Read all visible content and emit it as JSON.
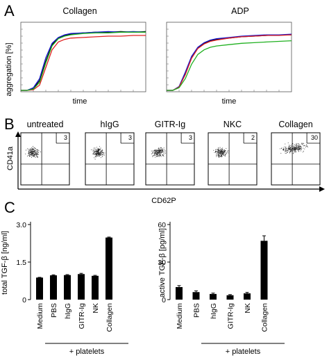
{
  "panels": {
    "a": "A",
    "b": "B",
    "c": "C"
  },
  "panel_a": {
    "ylabel": "aggregation [%]",
    "plots": [
      {
        "title": "Collagen",
        "xlabel": "time"
      },
      {
        "title": "ADP",
        "xlabel": "time"
      }
    ]
  },
  "panel_b": {
    "ylabel": "CD41a",
    "xlabel": "CD62P",
    "plots": [
      {
        "title": "untreated",
        "percent": "3"
      },
      {
        "title": "hIgG",
        "percent": "3"
      },
      {
        "title": "GITR-Ig",
        "percent": "3"
      },
      {
        "title": "NKC",
        "percent": "2"
      },
      {
        "title": "Collagen",
        "percent": "30"
      }
    ]
  },
  "panel_c": {
    "group_label": "+ platelets"
  },
  "colors": {
    "black": "#000000",
    "blue": "#1a1acc",
    "red": "#e02020",
    "green": "#1fb01f"
  },
  "chart_data": [
    {
      "type": "line",
      "title": "Collagen",
      "xlabel": "time",
      "ylabel": "aggregation [%]",
      "x": [
        0,
        0.05,
        0.1,
        0.15,
        0.2,
        0.25,
        0.3,
        0.35,
        0.4,
        0.5,
        0.6,
        0.7,
        0.8,
        0.9,
        1.0
      ],
      "series": [
        {
          "color": "#000000",
          "values": [
            0,
            0,
            3,
            15,
            45,
            70,
            80,
            84,
            86,
            88,
            89,
            89,
            90,
            89,
            90
          ]
        },
        {
          "color": "#1a1acc",
          "values": [
            0,
            0,
            4,
            18,
            50,
            72,
            81,
            85,
            87,
            88,
            89,
            90,
            89,
            90,
            89
          ]
        },
        {
          "color": "#e02020",
          "values": [
            0,
            0,
            1,
            8,
            35,
            62,
            74,
            78,
            80,
            81,
            82,
            83,
            83,
            84,
            84
          ]
        },
        {
          "color": "#1fb01f",
          "values": [
            0,
            0,
            2,
            12,
            42,
            68,
            79,
            83,
            85,
            87,
            88,
            88,
            89,
            89,
            89
          ]
        }
      ]
    },
    {
      "type": "line",
      "title": "ADP",
      "xlabel": "time",
      "ylabel": "aggregation [%]",
      "x": [
        0,
        0.05,
        0.1,
        0.15,
        0.2,
        0.25,
        0.3,
        0.35,
        0.4,
        0.5,
        0.6,
        0.7,
        0.8,
        0.9,
        1.0
      ],
      "series": [
        {
          "color": "#000000",
          "values": [
            0,
            0,
            5,
            25,
            50,
            65,
            72,
            76,
            78,
            80,
            82,
            83,
            84,
            85,
            85
          ]
        },
        {
          "color": "#1a1acc",
          "values": [
            0,
            0,
            6,
            28,
            52,
            66,
            73,
            77,
            79,
            81,
            83,
            84,
            85,
            85,
            86
          ]
        },
        {
          "color": "#e02020",
          "values": [
            0,
            0,
            5,
            24,
            49,
            64,
            71,
            75,
            77,
            80,
            82,
            83,
            84,
            84,
            85
          ]
        },
        {
          "color": "#1fb01f",
          "values": [
            0,
            0,
            4,
            18,
            40,
            55,
            62,
            66,
            68,
            70,
            72,
            73,
            74,
            75,
            76
          ]
        }
      ]
    },
    {
      "type": "bar",
      "ylabel": "total TGF-β [ng/ml]",
      "categories": [
        "Medium",
        "PBS",
        "hIgG",
        "GITR-Ig",
        "NK",
        "Collagen"
      ],
      "values": [
        0.88,
        0.97,
        0.98,
        1.02,
        0.95,
        2.48
      ],
      "errors": [
        0.01,
        0.02,
        0.02,
        0.03,
        0.02,
        0.02
      ],
      "yticks": [
        "0",
        "1.5",
        "3.0"
      ],
      "ylim": [
        0,
        3.0
      ],
      "xgroup": "+ platelets"
    },
    {
      "type": "bar",
      "ylabel": "active TGF-β [pg/ml]",
      "categories": [
        "Medium",
        "PBS",
        "hIgG",
        "GITR-Ig",
        "NK",
        "Collagen"
      ],
      "values": [
        10,
        6,
        4.5,
        3.5,
        5,
        47
      ],
      "errors": [
        1.2,
        1.0,
        0.7,
        0.5,
        0.8,
        4
      ],
      "yticks": [
        "0",
        "30",
        "60"
      ],
      "ylim": [
        0,
        60
      ],
      "xgroup": "+ platelets"
    }
  ]
}
